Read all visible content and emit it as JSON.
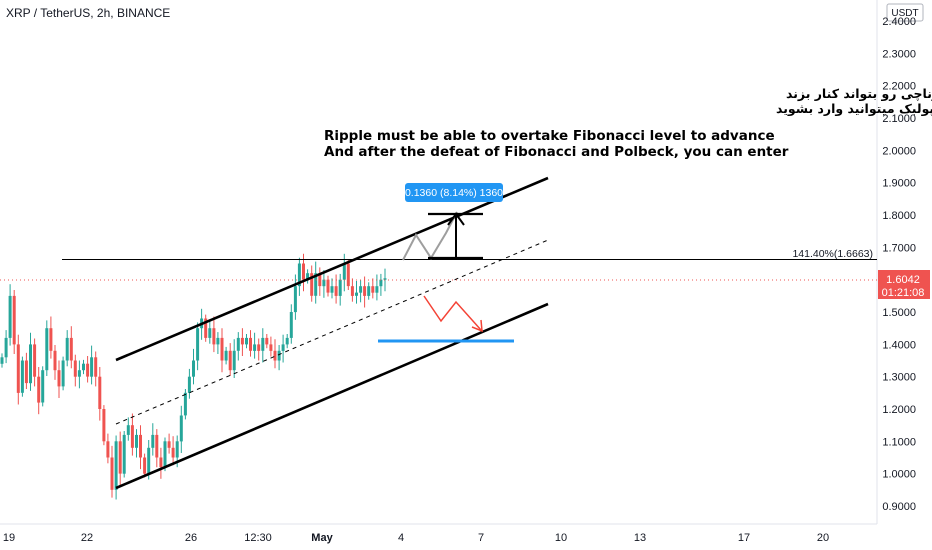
{
  "header": {
    "symbol_title": "XRP / TetherUS, 2h, BINANCE",
    "currency_badge": "USDT"
  },
  "colors": {
    "up": "#26a69a",
    "down": "#ef5350",
    "price_tag": "#ef5350",
    "measure_box": "#2196f3",
    "support_line": "#2196f3",
    "path_up": "#9e9e9e",
    "path_down": "#f44336",
    "channel": "#000000"
  },
  "annotations": {
    "persian_line1": "ریپل برای پیشروی باید تراز فیبوناچی رو بتواند کنار بزند",
    "persian_line2": "و بعد از شکست فیبوناچی و پولبک میتوانید وارد بشوید",
    "english_line1": "Ripple must be able to overtake Fibonacci level to advance",
    "english_line2": "And after the defeat of Fibonacci and Polbeck, you can enter",
    "measure_label": "0.1360 (8.14%) 1360",
    "fib_label": "141.40%(1.6663)"
  },
  "price_tag": {
    "price": "1.6042",
    "countdown": "01:21:08"
  },
  "chart_data": {
    "type": "candlestick",
    "title": "XRP / TetherUS, 2h, BINANCE",
    "y_axis": {
      "range": [
        0.85,
        2.42
      ],
      "ticks": [
        "2.4000",
        "2.3000",
        "2.2000",
        "2.1000",
        "2.0000",
        "1.9000",
        "1.8000",
        "1.7000",
        "1.6000",
        "1.5000",
        "1.4000",
        "1.3000",
        "1.2000",
        "1.1000",
        "1.0000",
        "0.9000"
      ]
    },
    "x_axis": {
      "tick_labels": [
        "19",
        "22",
        "26",
        "12:30",
        "May",
        "4",
        "7",
        "10",
        "13",
        "17",
        "20"
      ]
    },
    "current_price": 1.6042,
    "fib_level": 1.6663,
    "measure": {
      "from": 1.6663,
      "to": 1.8023,
      "change": 0.136,
      "percent": 8.14
    },
    "support_level": 1.41,
    "price_path": [
      1.36,
      1.42,
      1.55,
      1.4,
      1.25,
      1.35,
      1.28,
      1.4,
      1.3,
      1.22,
      1.32,
      1.45,
      1.38,
      1.32,
      1.27,
      1.35,
      1.42,
      1.35,
      1.3,
      1.32,
      1.34,
      1.3,
      1.36,
      1.3,
      1.2,
      1.1,
      1.05,
      0.95,
      1.1,
      1.0,
      1.12,
      1.15,
      1.08,
      1.12,
      1.05,
      1.0,
      1.08,
      1.12,
      1.05,
      1.02,
      1.1,
      1.08,
      1.05,
      1.1,
      1.18,
      1.25,
      1.3,
      1.35,
      1.45,
      1.48,
      1.42,
      1.45,
      1.4,
      1.42,
      1.35,
      1.38,
      1.32,
      1.38,
      1.42,
      1.4,
      1.42,
      1.38,
      1.4,
      1.38,
      1.42,
      1.4,
      1.38,
      1.35,
      1.38,
      1.4,
      1.42,
      1.5,
      1.58,
      1.65,
      1.6,
      1.62,
      1.55,
      1.62,
      1.58,
      1.6,
      1.56,
      1.58,
      1.55,
      1.6,
      1.65,
      1.58,
      1.55,
      1.56,
      1.58,
      1.55,
      1.58,
      1.56,
      1.58,
      1.6,
      1.6042
    ]
  }
}
